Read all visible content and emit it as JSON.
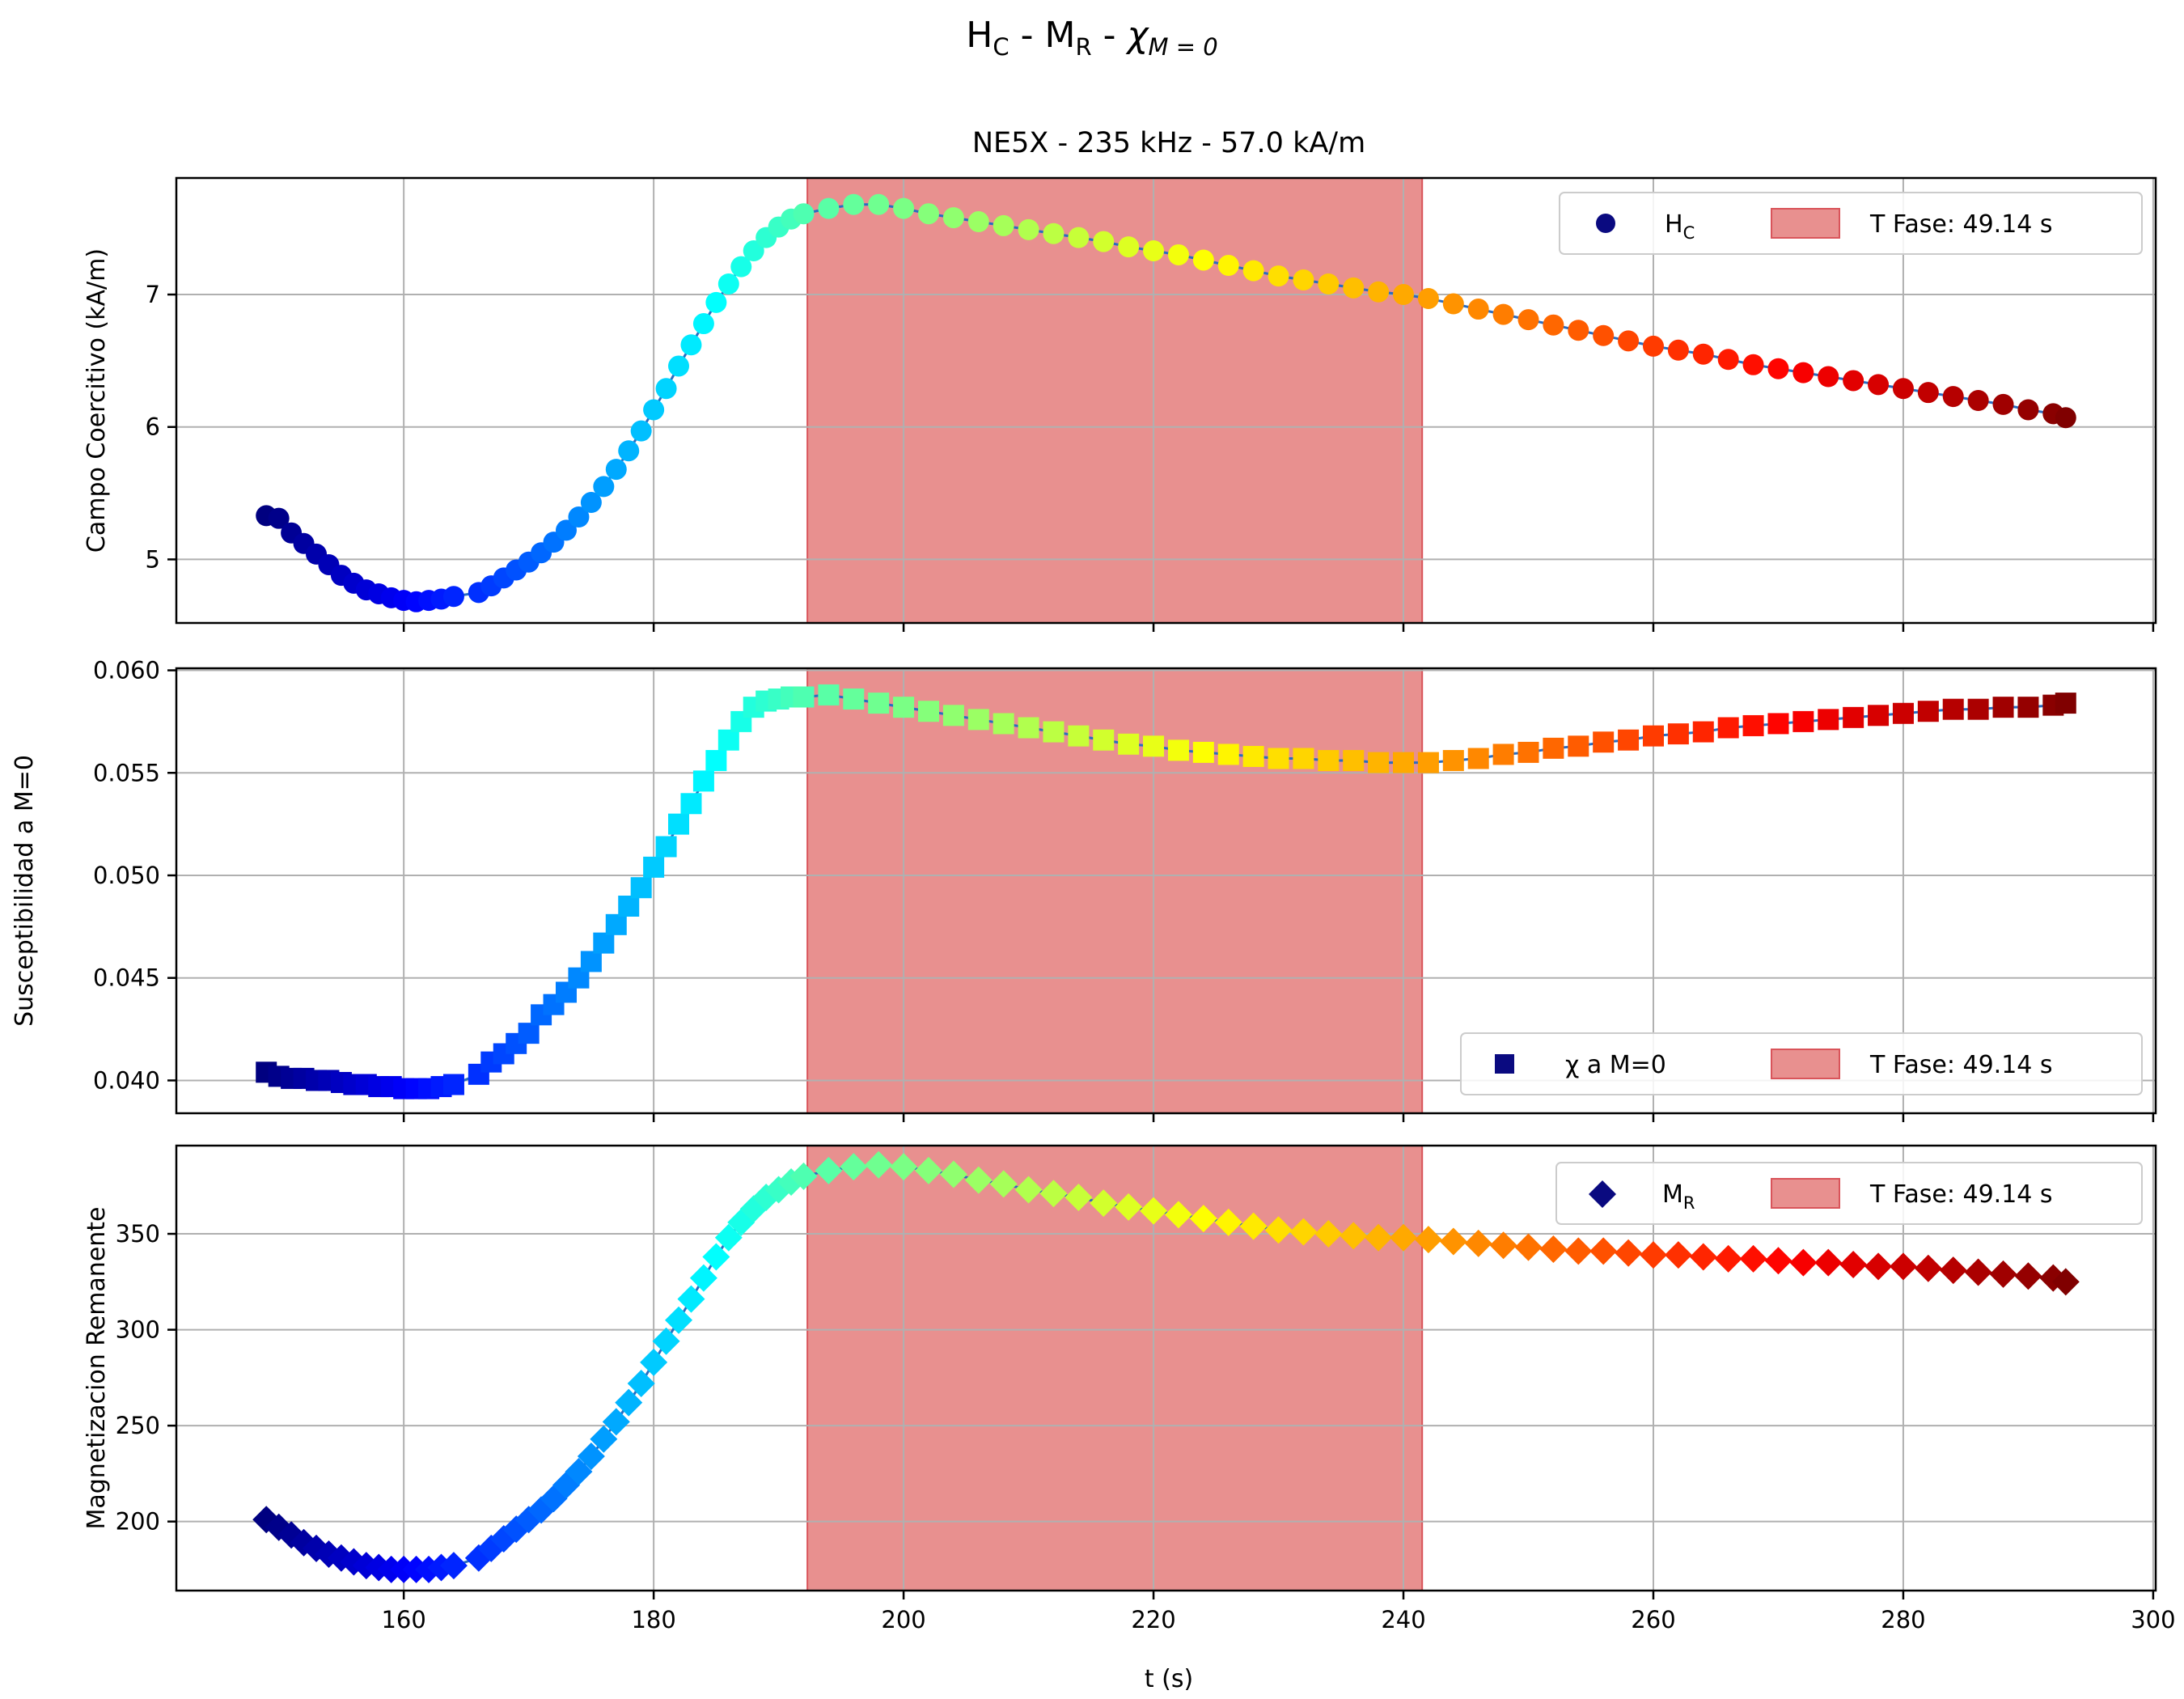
{
  "figure": {
    "suptitle_main": "H",
    "suptitle_sub1": "C",
    "suptitle_mid1": " - M",
    "suptitle_sub2": "R",
    "suptitle_mid2": " - ",
    "suptitle_chi": "χ",
    "suptitle_sub3": "M = 0",
    "subplot_title": "NE5X - 235 kHz - 57.0 kA/m",
    "xlabel": "t (s)"
  },
  "legends": {
    "hc_label_main": "H",
    "hc_label_sub": "C",
    "chi_label": "χ a M=0",
    "mr_label_main": "M",
    "mr_label_sub": "R",
    "phase_label": "T Fase: 49.14 s"
  },
  "colors": {
    "phase_fill": "#e8908f",
    "phase_edge": "#d9545a",
    "marker_legend": "#0a0a80",
    "grid": "#b0b0b0",
    "colormap": "jet"
  },
  "chart_data": [
    {
      "type": "scatter",
      "marker": "circle",
      "title": "NE5X - 235 kHz - 57.0 kA/m",
      "xlabel": "",
      "ylabel": "Campo Coercitivo (kA/m)",
      "xlim": [
        141.8,
        300.2
      ],
      "ylim": [
        4.52,
        7.88
      ],
      "xticks": [
        160,
        180,
        200,
        220,
        240,
        260,
        280,
        300
      ],
      "yticks": [
        5,
        6,
        7
      ],
      "ytick_labels": [
        "5",
        "6",
        "7"
      ],
      "grid": true,
      "legend_position": "top-right",
      "phase_span": [
        192.3,
        241.5
      ],
      "series": [
        {
          "name": "HC",
          "x": [
            149,
            150,
            151,
            152,
            153,
            154,
            155,
            156,
            157,
            158,
            159,
            160,
            161,
            162,
            163,
            164,
            166,
            167,
            168,
            169,
            170,
            171,
            172,
            173,
            174,
            175,
            176,
            177,
            178,
            179,
            180,
            181,
            182,
            183,
            184,
            185,
            186,
            187,
            188,
            189,
            190,
            191,
            192,
            194,
            196,
            198,
            200,
            202,
            204,
            206,
            208,
            210,
            212,
            214,
            216,
            218,
            220,
            222,
            224,
            226,
            228,
            230,
            232,
            234,
            236,
            238,
            240,
            242,
            244,
            246,
            248,
            250,
            252,
            254,
            256,
            258,
            260,
            262,
            264,
            266,
            268,
            270,
            272,
            274,
            276,
            278,
            280,
            282,
            284,
            286,
            288,
            290,
            292,
            293
          ],
          "y": [
            5.33,
            5.31,
            5.2,
            5.12,
            5.04,
            4.96,
            4.88,
            4.82,
            4.77,
            4.74,
            4.71,
            4.69,
            4.68,
            4.69,
            4.7,
            4.72,
            4.75,
            4.8,
            4.86,
            4.92,
            4.98,
            5.05,
            5.13,
            5.22,
            5.32,
            5.43,
            5.55,
            5.68,
            5.82,
            5.97,
            6.13,
            6.29,
            6.46,
            6.62,
            6.78,
            6.94,
            7.08,
            7.21,
            7.33,
            7.43,
            7.51,
            7.57,
            7.61,
            7.65,
            7.68,
            7.68,
            7.65,
            7.61,
            7.58,
            7.55,
            7.52,
            7.49,
            7.46,
            7.43,
            7.4,
            7.36,
            7.33,
            7.3,
            7.26,
            7.22,
            7.18,
            7.14,
            7.11,
            7.08,
            7.05,
            7.02,
            7.0,
            6.97,
            6.93,
            6.89,
            6.85,
            6.81,
            6.77,
            6.73,
            6.69,
            6.65,
            6.61,
            6.58,
            6.55,
            6.51,
            6.47,
            6.44,
            6.41,
            6.38,
            6.35,
            6.32,
            6.29,
            6.26,
            6.23,
            6.2,
            6.17,
            6.13,
            6.1,
            6.07
          ]
        }
      ]
    },
    {
      "type": "scatter",
      "marker": "square",
      "title": "",
      "xlabel": "",
      "ylabel": "Susceptibilidad a M=0",
      "xlim": [
        141.8,
        300.2
      ],
      "ylim": [
        0.0384,
        0.0601
      ],
      "xticks": [
        160,
        180,
        200,
        220,
        240,
        260,
        280,
        300
      ],
      "yticks": [
        0.04,
        0.045,
        0.05,
        0.055,
        0.06
      ],
      "ytick_labels": [
        "0.040",
        "0.045",
        "0.050",
        "0.055",
        "0.060"
      ],
      "grid": true,
      "legend_position": "bottom-right",
      "phase_span": [
        192.3,
        241.5
      ],
      "series": [
        {
          "name": "χ a M=0",
          "x": [
            149,
            150,
            151,
            152,
            153,
            154,
            155,
            156,
            157,
            158,
            159,
            160,
            161,
            162,
            163,
            164,
            166,
            167,
            168,
            169,
            170,
            171,
            172,
            173,
            174,
            175,
            176,
            177,
            178,
            179,
            180,
            181,
            182,
            183,
            184,
            185,
            186,
            187,
            188,
            189,
            190,
            191,
            192,
            194,
            196,
            198,
            200,
            202,
            204,
            206,
            208,
            210,
            212,
            214,
            216,
            218,
            220,
            222,
            224,
            226,
            228,
            230,
            232,
            234,
            236,
            238,
            240,
            242,
            244,
            246,
            248,
            250,
            252,
            254,
            256,
            258,
            260,
            262,
            264,
            266,
            268,
            270,
            272,
            274,
            276,
            278,
            280,
            282,
            284,
            286,
            288,
            290,
            292,
            293
          ],
          "y": [
            0.0404,
            0.0402,
            0.0401,
            0.0401,
            0.04,
            0.04,
            0.0399,
            0.0398,
            0.0398,
            0.0397,
            0.0397,
            0.0396,
            0.0396,
            0.0396,
            0.0397,
            0.0398,
            0.0403,
            0.0409,
            0.0413,
            0.0418,
            0.0423,
            0.0432,
            0.0437,
            0.0443,
            0.045,
            0.0458,
            0.0467,
            0.0476,
            0.0485,
            0.0494,
            0.0504,
            0.0514,
            0.0525,
            0.0535,
            0.0546,
            0.0556,
            0.0566,
            0.0575,
            0.0582,
            0.0585,
            0.0586,
            0.0587,
            0.0587,
            0.0588,
            0.0586,
            0.0584,
            0.0582,
            0.058,
            0.0578,
            0.0576,
            0.0574,
            0.0572,
            0.057,
            0.0568,
            0.0566,
            0.0564,
            0.0563,
            0.0561,
            0.056,
            0.0559,
            0.0558,
            0.0557,
            0.0557,
            0.0556,
            0.0556,
            0.0555,
            0.0555,
            0.0555,
            0.0556,
            0.0557,
            0.0559,
            0.056,
            0.0562,
            0.0563,
            0.0565,
            0.0566,
            0.0568,
            0.0569,
            0.057,
            0.0572,
            0.0573,
            0.0574,
            0.0575,
            0.0576,
            0.0577,
            0.0578,
            0.0579,
            0.058,
            0.0581,
            0.0581,
            0.0582,
            0.0582,
            0.0583,
            0.0584
          ]
        }
      ]
    },
    {
      "type": "scatter",
      "marker": "diamond",
      "title": "",
      "xlabel": "t (s)",
      "ylabel": "Magnetizacion Remanente",
      "xlim": [
        141.8,
        300.2
      ],
      "ylim": [
        164,
        396
      ],
      "xticks": [
        160,
        180,
        200,
        220,
        240,
        260,
        280,
        300
      ],
      "yticks": [
        200,
        250,
        300,
        350
      ],
      "ytick_labels": [
        "200",
        "250",
        "300",
        "350"
      ],
      "grid": true,
      "legend_position": "top-right",
      "phase_span": [
        192.3,
        241.5
      ],
      "series": [
        {
          "name": "MR",
          "x": [
            149,
            150,
            151,
            152,
            153,
            154,
            155,
            156,
            157,
            158,
            159,
            160,
            161,
            162,
            163,
            164,
            166,
            167,
            168,
            169,
            170,
            171,
            172,
            173,
            174,
            175,
            176,
            177,
            178,
            179,
            180,
            181,
            182,
            183,
            184,
            185,
            186,
            187,
            188,
            189,
            190,
            191,
            192,
            194,
            196,
            198,
            200,
            202,
            204,
            206,
            208,
            210,
            212,
            214,
            216,
            218,
            220,
            222,
            224,
            226,
            228,
            230,
            232,
            234,
            236,
            238,
            240,
            242,
            244,
            246,
            248,
            250,
            252,
            254,
            256,
            258,
            260,
            262,
            264,
            266,
            268,
            270,
            272,
            274,
            276,
            278,
            280,
            282,
            284,
            286,
            288,
            290,
            292,
            293
          ],
          "y": [
            201,
            197,
            193,
            189,
            186,
            183,
            181,
            179,
            177,
            176,
            175,
            175,
            175,
            175,
            176,
            177,
            181,
            186,
            191,
            196,
            201,
            206,
            212,
            219,
            226,
            234,
            243,
            252,
            262,
            272,
            283,
            294,
            305,
            316,
            327,
            338,
            348,
            356,
            363,
            369,
            373,
            377,
            380,
            383,
            385,
            386,
            385,
            383,
            381,
            378,
            376,
            373,
            371,
            369,
            366,
            364,
            362,
            360,
            358,
            356,
            354,
            352,
            351,
            350,
            349,
            348,
            348,
            347,
            346,
            345,
            344,
            343,
            342,
            341,
            341,
            340,
            339,
            339,
            338,
            337,
            337,
            336,
            335,
            335,
            334,
            333,
            333,
            332,
            331,
            330,
            329,
            328,
            327,
            325
          ]
        }
      ]
    }
  ]
}
